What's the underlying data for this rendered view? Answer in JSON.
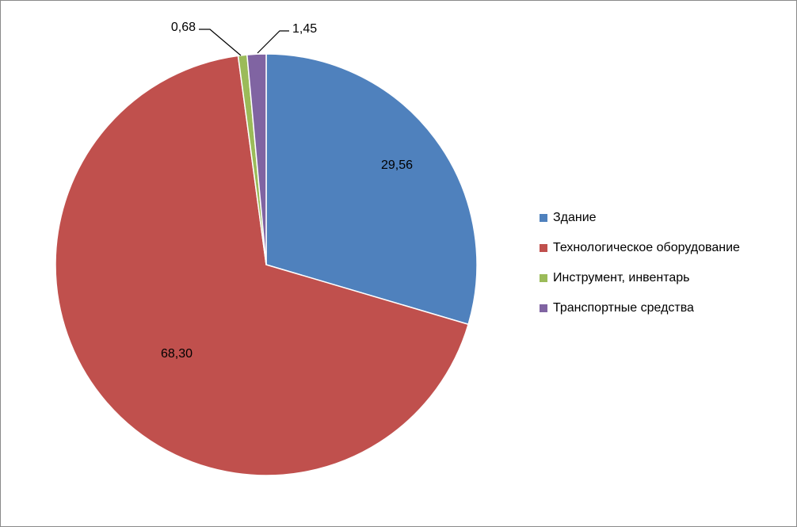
{
  "chart_data": {
    "type": "pie",
    "categories": [
      "Здание",
      "Технологическое оборудование",
      "Инструмент, инвентарь",
      "Транспортные средства"
    ],
    "values": [
      29.56,
      68.3,
      0.68,
      1.45
    ],
    "data_labels": [
      "29,56",
      "68,30",
      "0,68",
      "1,45"
    ],
    "colors": [
      "#4F81BD",
      "#C0504D",
      "#9BBB59",
      "#8064A2"
    ],
    "legend_position": "right",
    "start_angle": "12 o'clock",
    "direction": "clockwise"
  }
}
